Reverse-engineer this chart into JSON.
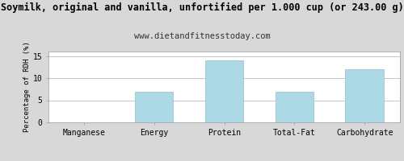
{
  "title": "Soymilk, original and vanilla, unfortified per 1.000 cup (or 243.00 g)",
  "subtitle": "www.dietandfitnesstoday.com",
  "categories": [
    "Manganese",
    "Energy",
    "Protein",
    "Total-Fat",
    "Carbohydrate"
  ],
  "values": [
    0,
    7,
    14,
    7,
    12
  ],
  "bar_color": "#add8e6",
  "bar_edge_color": "#90c0d0",
  "ylabel": "Percentage of RDH (%)",
  "ylim": [
    0,
    16
  ],
  "yticks": [
    0,
    5,
    10,
    15
  ],
  "title_fontsize": 8.5,
  "subtitle_fontsize": 7.5,
  "ylabel_fontsize": 6.5,
  "tick_fontsize": 7.0,
  "background_color": "#d8d8d8",
  "plot_bg_color": "#ffffff",
  "grid_color": "#bbbbbb",
  "title_color": "#000000",
  "subtitle_color": "#333333"
}
